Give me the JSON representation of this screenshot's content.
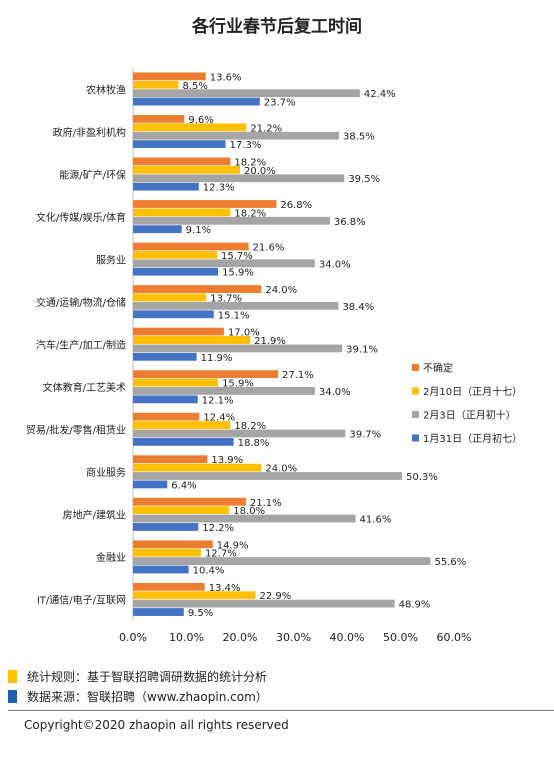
{
  "chart_data": {
    "type": "bar",
    "orientation": "horizontal",
    "title": "各行业春节后复工时间",
    "categories": [
      "农林牧渔",
      "政府/非盈利机构",
      "能源/矿产/环保",
      "文化/传媒/娱乐/体育",
      "服务业",
      "交通/运输/物流/仓储",
      "汽车/生产/加工/制造",
      "文体教育/工艺美术",
      "贸易/批发/零售/租赁业",
      "商业服务",
      "房地产/建筑业",
      "金融业",
      "IT/通信/电子/互联网"
    ],
    "series": [
      {
        "name": "不确定",
        "color": "#ed7d31",
        "values": [
          13.6,
          9.6,
          18.2,
          26.8,
          21.6,
          24.0,
          17.0,
          27.1,
          12.4,
          13.9,
          21.1,
          14.9,
          13.4
        ]
      },
      {
        "name": "2月10日（正月十七）",
        "color": "#ffc000",
        "values": [
          8.5,
          21.2,
          20.0,
          18.2,
          15.7,
          13.7,
          21.9,
          15.9,
          18.2,
          24.0,
          18.0,
          12.7,
          22.9
        ]
      },
      {
        "name": "2月3日（正月初十）",
        "color": "#a5a5a5",
        "values": [
          42.4,
          38.5,
          39.5,
          36.8,
          34.0,
          38.4,
          39.1,
          34.0,
          39.7,
          50.3,
          41.6,
          55.6,
          48.9
        ]
      },
      {
        "name": "1月31日（正月初七）",
        "color": "#4472c4",
        "values": [
          23.7,
          17.3,
          12.3,
          9.1,
          15.9,
          15.1,
          11.9,
          12.1,
          18.8,
          6.4,
          12.2,
          10.4,
          9.5
        ]
      }
    ],
    "xlim": [
      0,
      60
    ],
    "xticks": [
      "0.0%",
      "10.0%",
      "20.0%",
      "30.0%",
      "40.0%",
      "50.0%",
      "60.0%"
    ],
    "grid": false,
    "legend_position": "right"
  },
  "footer": {
    "rule_label": "统计规则：基于智联招聘调研数据的统计分析",
    "rule_color": "#ffc000",
    "source_label": "数据来源：智联招聘（www.zhaopin.com）",
    "source_color": "#1f5fb4",
    "copyright": "Copyright©2020 zhaopin all rights reserved"
  }
}
